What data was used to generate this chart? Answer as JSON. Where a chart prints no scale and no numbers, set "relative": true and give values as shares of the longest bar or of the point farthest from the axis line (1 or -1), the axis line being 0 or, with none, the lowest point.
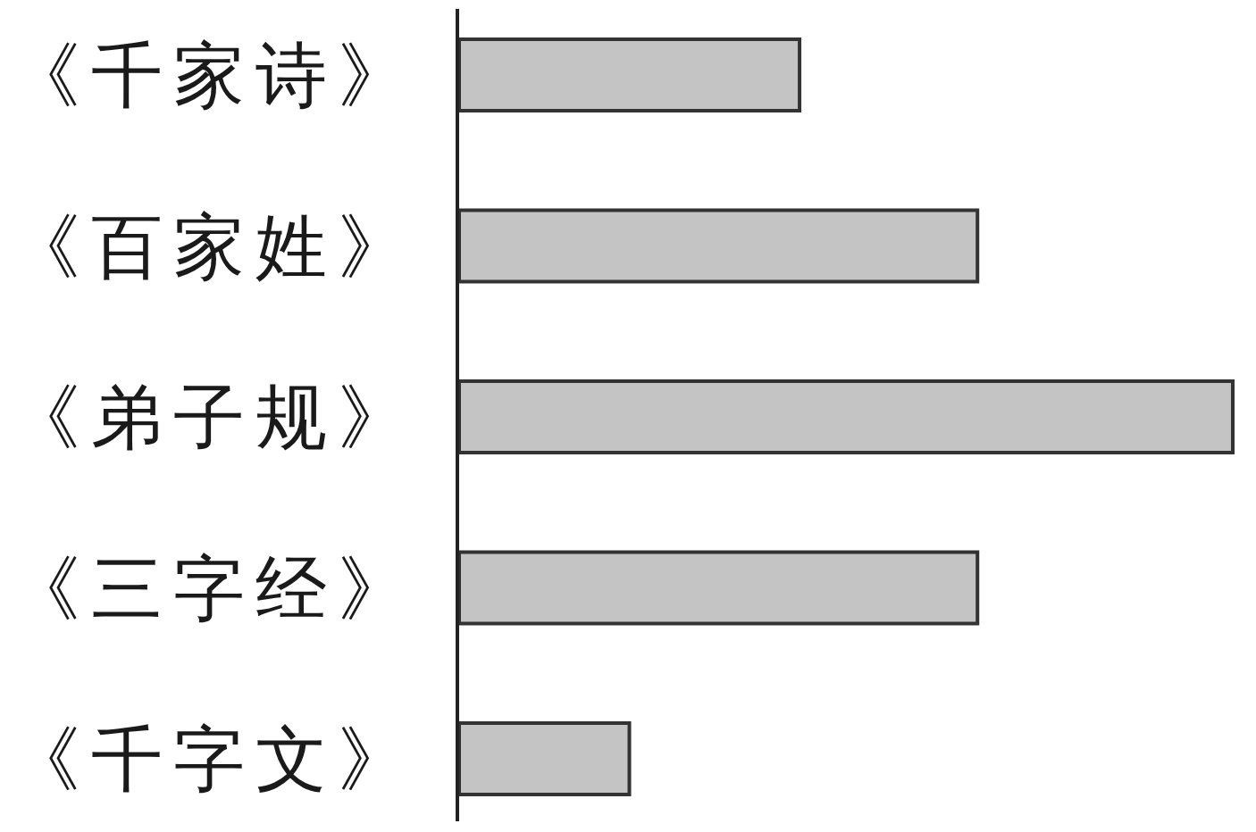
{
  "chart_data": {
    "type": "bar",
    "orientation": "horizontal",
    "relative": true,
    "categories": [
      "《千家诗》",
      "《百家姓》",
      "《弟子规》",
      "《三字经》",
      "《千字文》"
    ],
    "values": [
      0.44,
      0.67,
      1,
      0.67,
      0.22
    ],
    "color": "#c4c4c4"
  }
}
